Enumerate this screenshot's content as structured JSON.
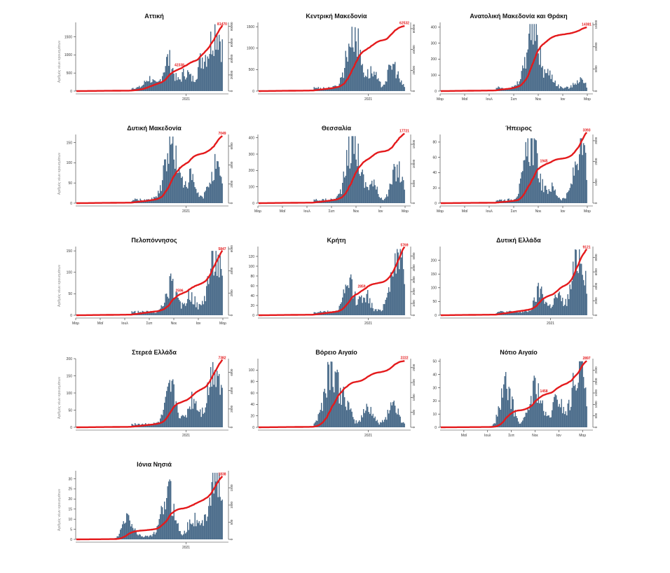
{
  "colors": {
    "bars": "#4a6b8a",
    "line": "#e41a1c",
    "axis": "#333333"
  },
  "y_axis_label": "Αριθμός νέων κρουσμάτων",
  "chart_data": [
    {
      "type": "bar",
      "title": "Αττική",
      "ylim": [
        0,
        1900
      ],
      "yticks": [
        0,
        500,
        1000,
        1500
      ],
      "y2lim": [
        0,
        85000
      ],
      "y2ticks": [
        0,
        20000,
        40000,
        60000,
        80000
      ],
      "xticks": [
        "2021"
      ],
      "line_labels": [
        "42338",
        "81470"
      ],
      "total": 81470,
      "bar_scale": 1850,
      "peaks": [
        [
          0.5,
          0.15
        ],
        [
          0.63,
          0.45
        ],
        [
          0.75,
          0.25
        ],
        [
          0.86,
          0.4
        ],
        [
          0.96,
          0.95
        ]
      ]
    },
    {
      "type": "bar",
      "title": "Κεντρική Μακεδονία",
      "ylim": [
        0,
        1600
      ],
      "yticks": [
        0,
        500,
        1000,
        1500
      ],
      "y2lim": [
        0,
        66000
      ],
      "y2ticks": [
        0,
        20000,
        40000,
        60000
      ],
      "xticks": [
        "2021"
      ],
      "line_labels": [
        "62532"
      ],
      "total": 62532,
      "bar_scale": 1500,
      "peaks": [
        [
          0.65,
          0.95
        ],
        [
          0.78,
          0.25
        ],
        [
          0.92,
          0.38
        ]
      ]
    },
    {
      "type": "bar",
      "title": "Ανατολική Μακεδονία και Θράκη",
      "ylim": [
        0,
        430
      ],
      "yticks": [
        0,
        100,
        200,
        300,
        400
      ],
      "y2lim": [
        0,
        15500
      ],
      "y2ticks": [
        0,
        5000,
        10000,
        15000
      ],
      "xticks": [
        "Μαρ",
        "Μαΐ",
        "Ιουλ",
        "Σεπ",
        "Νοε",
        "Ιαν",
        "Μαρ"
      ],
      "line_labels": [
        "14381"
      ],
      "total": 14381,
      "bar_scale": 420,
      "peaks": [
        [
          0.63,
          0.95
        ],
        [
          0.75,
          0.2
        ],
        [
          0.95,
          0.15
        ]
      ]
    },
    {
      "type": "bar",
      "title": "Δυτική Μακεδονία",
      "ylim": [
        0,
        170
      ],
      "yticks": [
        0,
        50,
        100,
        150
      ],
      "y2lim": [
        0,
        7200
      ],
      "y2ticks": [
        0,
        2000,
        4000,
        6000
      ],
      "xticks": [
        "2021"
      ],
      "line_labels": [
        "7049"
      ],
      "total": 7049,
      "bar_scale": 165,
      "peaks": [
        [
          0.65,
          0.9
        ],
        [
          0.78,
          0.35
        ],
        [
          0.95,
          0.55
        ]
      ]
    },
    {
      "type": "bar",
      "title": "Θεσσαλία",
      "ylim": [
        0,
        420
      ],
      "yticks": [
        0,
        100,
        200,
        300,
        400
      ],
      "y2lim": [
        0,
        17500
      ],
      "y2ticks": [
        0,
        5000,
        10000,
        15000
      ],
      "xticks": [
        "Μαρ",
        "Μαΐ",
        "Ιουλ",
        "Σεπ",
        "Νοε",
        "Ιαν",
        "Μαρ"
      ],
      "line_labels": [
        "17721"
      ],
      "total": 17721,
      "bar_scale": 410,
      "peaks": [
        [
          0.65,
          0.95
        ],
        [
          0.78,
          0.25
        ],
        [
          0.95,
          0.5
        ]
      ]
    },
    {
      "type": "bar",
      "title": "Ήπειρος",
      "ylim": [
        0,
        90
      ],
      "yticks": [
        0,
        20,
        40,
        60,
        80
      ],
      "y2lim": [
        0,
        3300
      ],
      "y2ticks": [
        0,
        1000,
        2000,
        3000
      ],
      "xticks": [
        "Μαρ",
        "Μαΐ",
        "Ιουλ",
        "Σεπ",
        "Νοε",
        "Ιαν",
        "Μαρ"
      ],
      "line_labels": [
        "1945",
        "3393"
      ],
      "total": 3393,
      "bar_scale": 85,
      "peaks": [
        [
          0.62,
          0.95
        ],
        [
          0.76,
          0.2
        ],
        [
          0.96,
          0.85
        ]
      ]
    },
    {
      "type": "bar",
      "title": "Πελοπόννησος",
      "ylim": [
        0,
        160
      ],
      "yticks": [
        0,
        50,
        100,
        150
      ],
      "y2lim": [
        0,
        6200
      ],
      "y2ticks": [
        0,
        2000,
        4000,
        6000
      ],
      "xticks": [
        "Μαρ",
        "Μαΐ",
        "Ιουλ",
        "Σεπ",
        "Νοε",
        "Ιαν",
        "Μαρ"
      ],
      "line_labels": [
        "2596",
        "5847"
      ],
      "total": 5847,
      "bar_scale": 150,
      "peaks": [
        [
          0.65,
          0.45
        ],
        [
          0.78,
          0.3
        ],
        [
          0.95,
          0.95
        ]
      ]
    },
    {
      "type": "bar",
      "title": "Κρήτη",
      "ylim": [
        0,
        140
      ],
      "yticks": [
        0,
        20,
        40,
        60,
        80,
        100,
        120
      ],
      "y2lim": [
        0,
        5800
      ],
      "y2ticks": [
        0,
        1000,
        2000,
        3000,
        4000,
        5000
      ],
      "xticks": [
        "2021"
      ],
      "line_labels": [
        "2859",
        "5769"
      ],
      "total": 5769,
      "bar_scale": 135,
      "peaks": [
        [
          0.62,
          0.45
        ],
        [
          0.73,
          0.3
        ],
        [
          0.95,
          0.95
        ]
      ]
    },
    {
      "type": "bar",
      "title": "Δυτική Ελλάδα",
      "ylim": [
        0,
        250
      ],
      "yticks": [
        0,
        50,
        100,
        150,
        200
      ],
      "y2lim": [
        0,
        9500
      ],
      "y2ticks": [
        0,
        2000,
        4000,
        6000,
        8000
      ],
      "xticks": [
        "2021"
      ],
      "line_labels": [
        "9121"
      ],
      "total": 9121,
      "bar_scale": 240,
      "peaks": [
        [
          0.68,
          0.35
        ],
        [
          0.8,
          0.25
        ],
        [
          0.95,
          0.95
        ]
      ]
    },
    {
      "type": "bar",
      "title": "Στερεά Ελλάδα",
      "ylim": [
        0,
        200
      ],
      "yticks": [
        0,
        50,
        100,
        150,
        200
      ],
      "y2lim": [
        0,
        7500
      ],
      "y2ticks": [
        0,
        2000,
        4000,
        6000
      ],
      "xticks": [
        "2021"
      ],
      "line_labels": [
        "7382"
      ],
      "total": 7382,
      "bar_scale": 190,
      "peaks": [
        [
          0.65,
          0.55
        ],
        [
          0.8,
          0.4
        ],
        [
          0.95,
          0.95
        ]
      ]
    },
    {
      "type": "bar",
      "title": "Βόρειο Αιγαίο",
      "ylim": [
        0,
        120
      ],
      "yticks": [
        0,
        20,
        40,
        60,
        80,
        100
      ],
      "y2lim": [
        0,
        2300
      ],
      "y2ticks": [
        0,
        500,
        1000,
        1500,
        2000
      ],
      "xticks": [
        "2021"
      ],
      "line_labels": [
        "2222"
      ],
      "total": 2222,
      "bar_scale": 115,
      "peaks": [
        [
          0.5,
          0.95
        ],
        [
          0.6,
          0.3
        ],
        [
          0.75,
          0.3
        ],
        [
          0.92,
          0.35
        ]
      ]
    },
    {
      "type": "bar",
      "title": "Νότιο Αιγαίο",
      "ylim": [
        0,
        52
      ],
      "yticks": [
        0,
        10,
        20,
        30,
        40,
        50
      ],
      "y2lim": [
        0,
        3000
      ],
      "y2ticks": [
        0,
        500,
        1000,
        1500,
        2000,
        2500
      ],
      "xticks": [
        "Μαΐ",
        "Ιουλ",
        "Σεπ",
        "Νοε",
        "Ιαν",
        "Μαρ"
      ],
      "line_labels": [
        "1458",
        "2897"
      ],
      "total": 2897,
      "bar_scale": 50,
      "peaks": [
        [
          0.45,
          0.6
        ],
        [
          0.65,
          0.6
        ],
        [
          0.8,
          0.4
        ],
        [
          0.95,
          0.95
        ]
      ]
    },
    {
      "type": "bar",
      "title": "Ιόνια Νησιά",
      "ylim": [
        0,
        34
      ],
      "yticks": [
        0,
        5,
        10,
        15,
        20,
        25,
        30
      ],
      "y2lim": [
        0,
        2000
      ],
      "y2ticks": [
        0,
        500,
        1000,
        1500
      ],
      "xticks": [
        "2021"
      ],
      "line_labels": [
        "1838"
      ],
      "total": 1838,
      "bar_scale": 33,
      "peaks": [
        [
          0.35,
          0.35
        ],
        [
          0.63,
          0.7
        ],
        [
          0.8,
          0.3
        ],
        [
          0.95,
          0.95
        ]
      ]
    }
  ]
}
